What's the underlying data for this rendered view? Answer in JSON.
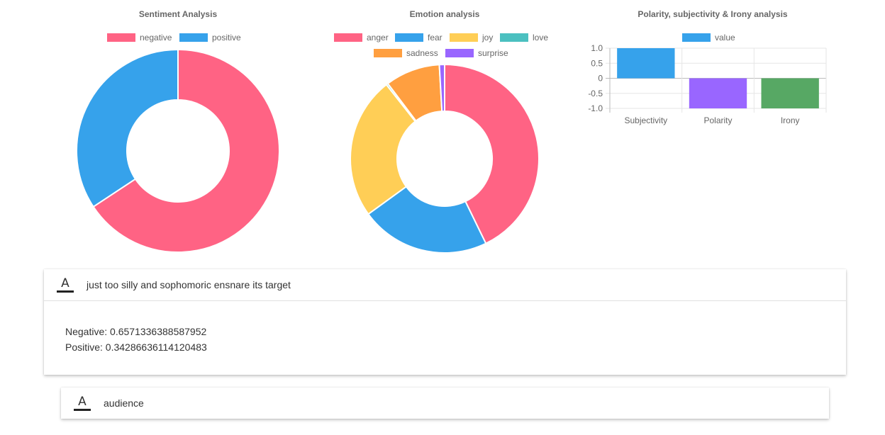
{
  "chart_data": [
    {
      "type": "doughnut",
      "title": "Sentiment Analysis",
      "legend_position": "top",
      "labels": [
        "negative",
        "positive"
      ],
      "values": [
        0.6571336388587952,
        0.34286636114120483
      ],
      "colors": [
        "#ff6384",
        "#36a2eb"
      ]
    },
    {
      "type": "doughnut",
      "title": "Emotion analysis",
      "legend_position": "top",
      "labels": [
        "anger",
        "fear",
        "joy",
        "love",
        "sadness",
        "surprise"
      ],
      "values": [
        0.428,
        0.222,
        0.244,
        0.003,
        0.094,
        0.009
      ],
      "colors": [
        "#ff6384",
        "#36a2eb",
        "#ffce56",
        "#4bc0c0",
        "#ff9f40",
        "#9966ff"
      ]
    },
    {
      "type": "bar",
      "title": "Polarity, subjectivity & Irony analysis",
      "legend_position": "top",
      "series_name": "value",
      "categories": [
        "Subjectivity",
        "Polarity",
        "Irony"
      ],
      "values": [
        1.0,
        -1.0,
        -1.0
      ],
      "colors": [
        "#36a2eb",
        "#9966ff",
        "#57a864"
      ],
      "ylim": [
        -1.0,
        1.0
      ],
      "yticks": [
        "1.0",
        "0.5",
        "0",
        "-0.5",
        "-1.0"
      ],
      "grid": true
    }
  ],
  "panels": [
    {
      "title": "just too silly and sophomoric ensnare its target",
      "lines": [
        "Negative: 0.6571336388587952",
        "Positive: 0.34286636114120483"
      ]
    },
    {
      "title": "audience"
    }
  ],
  "icons": {
    "panel_icon": "text-format-icon"
  }
}
